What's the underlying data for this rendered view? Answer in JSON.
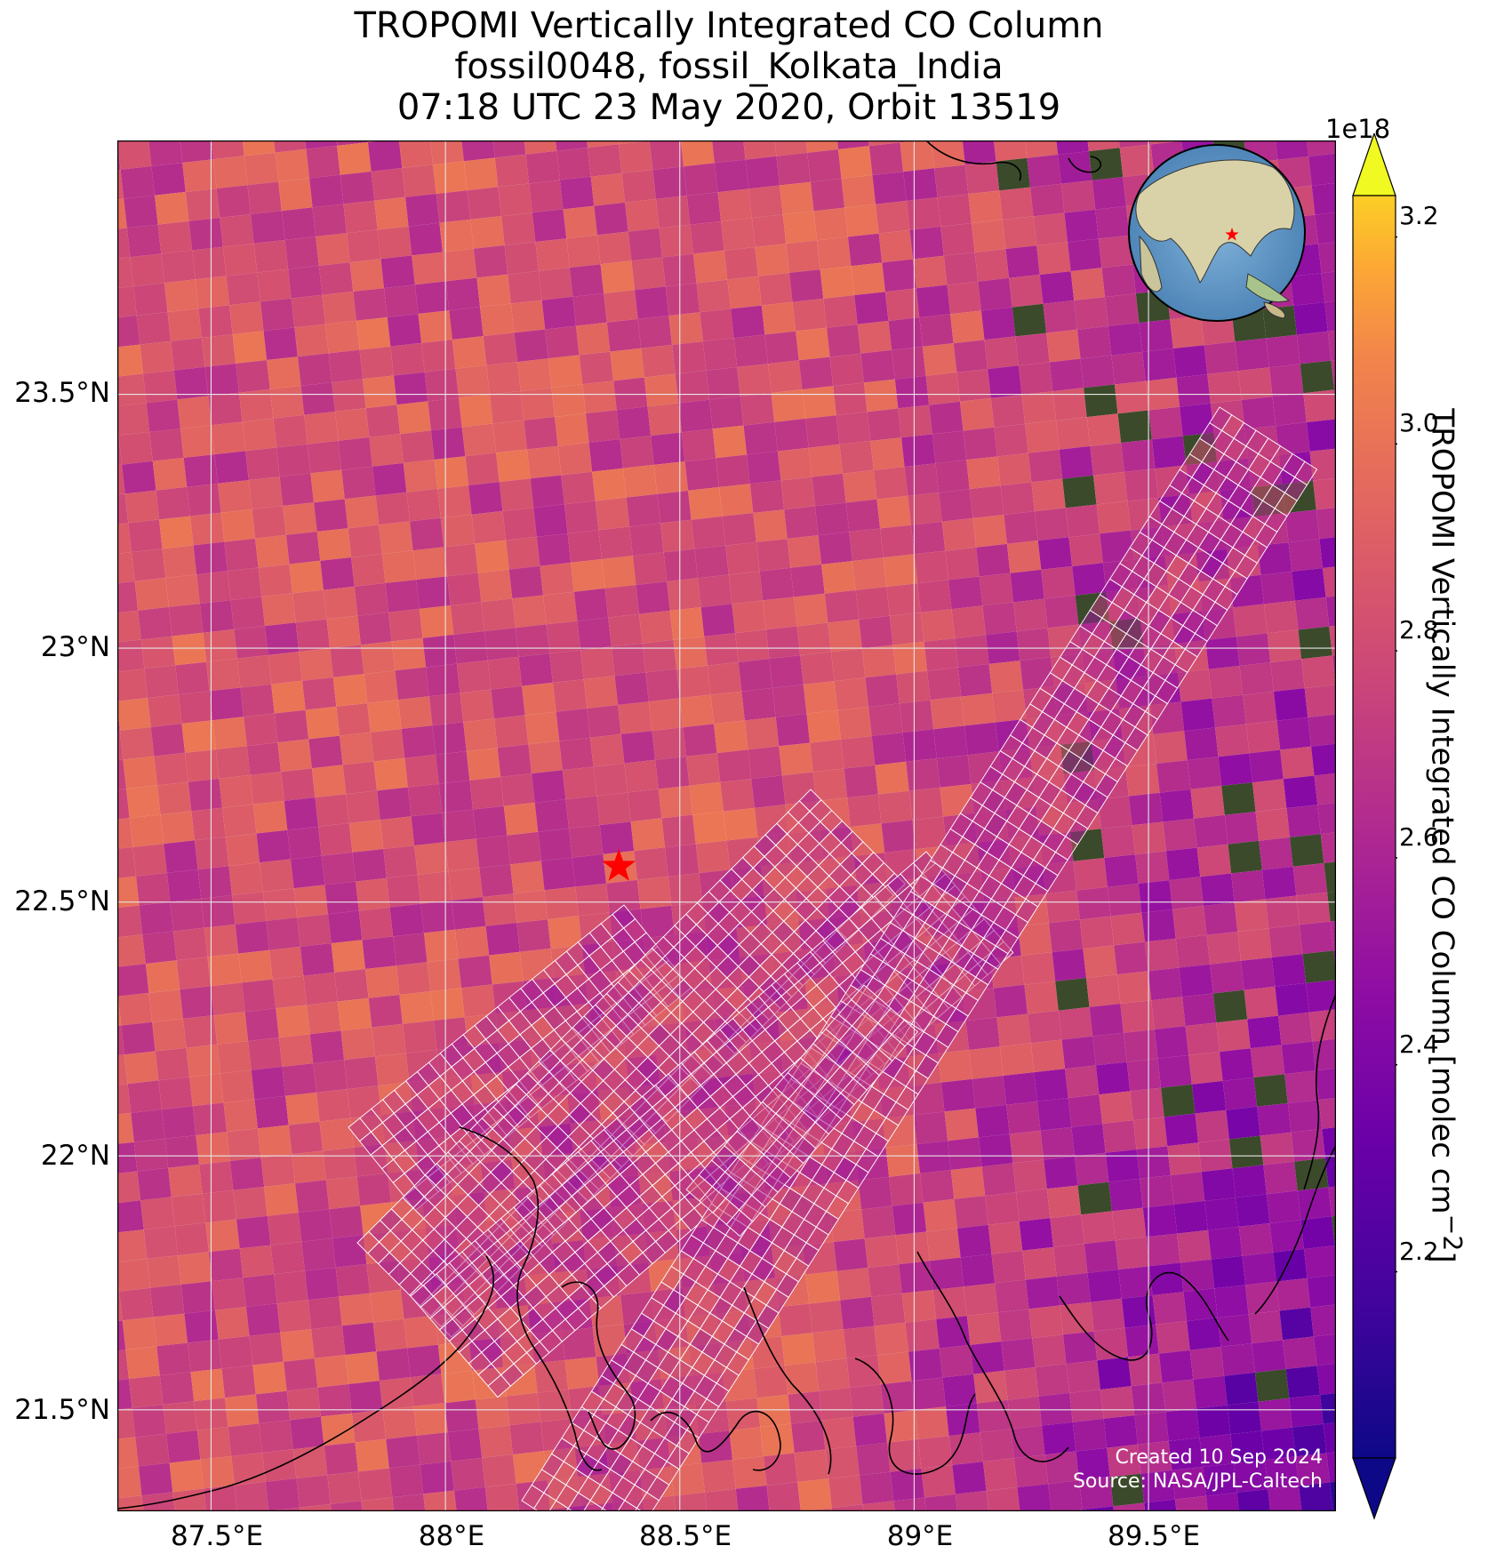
{
  "title": {
    "line1": "TROPOMI Vertically Integrated CO Column",
    "line2": "fossil0048, fossil_Kolkata_India",
    "line3": "07:18 UTC 23 May 2020, Orbit 13519"
  },
  "map": {
    "lon_range": [
      87.3,
      89.9
    ],
    "lat_range": [
      21.3,
      24.0
    ],
    "lon_ticks": [
      "87.5°E",
      "88°E",
      "88.5°E",
      "89°E",
      "89.5°E"
    ],
    "lat_ticks": [
      "23.5°N",
      "23°N",
      "22.5°N",
      "22°N",
      "21.5°N"
    ],
    "target": {
      "name": "fossil_Kolkata_India",
      "lon": 88.37,
      "lat": 22.57,
      "marker": "red-star",
      "color": "#ff0000"
    },
    "grid": true,
    "inset": "globe-centered-on-south-asia-with-red-star",
    "background_features": [
      "satellite-imagery",
      "coastline-black"
    ]
  },
  "colorbar": {
    "exponent": "1e18",
    "ticks": [
      "3.2",
      "3.0",
      "2.8",
      "2.6",
      "2.4",
      "2.2"
    ],
    "label": "TROPOMI Vertically Integrated CO Column [molec cm",
    "label_superscript": "−2",
    "label_end": "]",
    "colormap": "plasma",
    "range": [
      2.02,
      3.24
    ]
  },
  "credit": {
    "line1": "Created 10 Sep 2024",
    "line2": "Source: NASA/JPL-Caltech"
  }
}
